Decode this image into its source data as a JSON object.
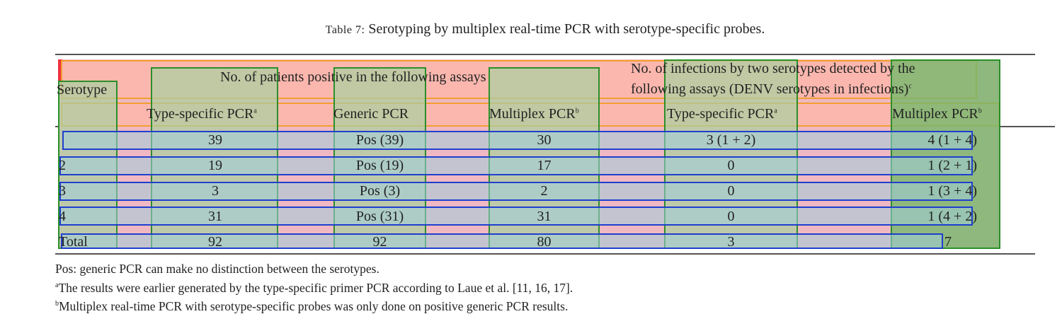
{
  "table": {
    "caption_label": "Table 7:",
    "caption_text": "Serotyping by multiplex real-time PCR with serotype-specific probes.",
    "header": {
      "serotype": "Serotype",
      "group_patients": "No. of patients positive in the following assays",
      "group_infections_line1": "No. of infections by two serotypes detected by the",
      "group_infections_line2": "following assays (DENV serotypes in infections)",
      "group_infections_sup": "c",
      "col_type_specific": "Type-specific PCR",
      "col_type_specific_sup": "a",
      "col_generic": "Generic PCR",
      "col_multiplex": "Multiplex PCR",
      "col_multiplex_sup": "b",
      "col_type_specific_2": "Type-specific PCR",
      "col_type_specific_2_sup": "a",
      "col_multiplex_2": "Multiplex PCR",
      "col_multiplex_2_sup": "b"
    },
    "rows": [
      {
        "serotype": "1",
        "type_specific": "39",
        "generic": "Pos (39)",
        "multiplex": "30",
        "inf_type_specific": "3 (1 + 2)",
        "inf_multiplex": "4 (1 + 4)"
      },
      {
        "serotype": "2",
        "type_specific": "19",
        "generic": "Pos (19)",
        "multiplex": "17",
        "inf_type_specific": "0",
        "inf_multiplex": "1 (2 + 1)"
      },
      {
        "serotype": "3",
        "type_specific": "3",
        "generic": "Pos (3)",
        "multiplex": "2",
        "inf_type_specific": "0",
        "inf_multiplex": "1 (3 + 4)"
      },
      {
        "serotype": "4",
        "type_specific": "31",
        "generic": "Pos (31)",
        "multiplex": "31",
        "inf_type_specific": "0",
        "inf_multiplex": "1 (4 + 2)"
      },
      {
        "serotype": "Total",
        "type_specific": "92",
        "generic": "92",
        "multiplex": "80",
        "inf_type_specific": "3",
        "inf_multiplex": "7"
      }
    ],
    "footnotes": {
      "pos": "Pos: generic PCR can make no distinction between the serotypes.",
      "a_mark": "a",
      "a": "The results were earlier generated by the type-specific primer PCR according to Laue et al. [11, 16, 17].",
      "b_mark": "b",
      "b": "Multiplex real-time PCR with serotype-specific probes was only done on positive generic PCR results."
    }
  },
  "colors": {
    "cell_fill": "#f0b8c2",
    "header_fill": "#fbb7ae",
    "column_fill": "#c5dcae",
    "row_fill": "#b8d6d4",
    "column_stroke": "#2a8f2a",
    "header_stroke": "#f0a030",
    "row_stroke": "#1f3fcf",
    "rule": "#555555"
  }
}
